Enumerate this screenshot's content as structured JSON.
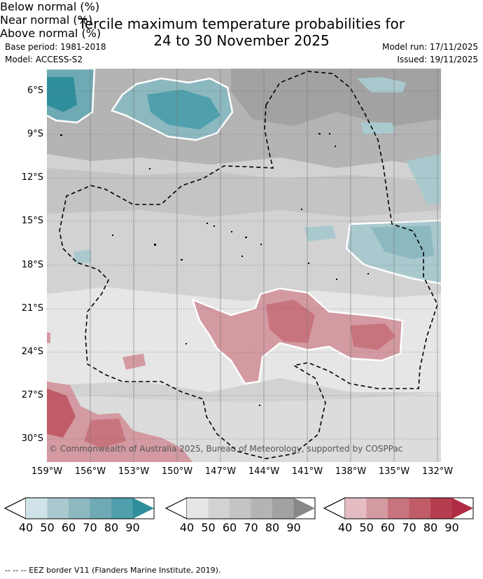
{
  "title_line1": "Tercile maximum temperature probabilities for",
  "title_line2": "24 to 30 November 2025",
  "base_period": "Base period: 1981-2018",
  "model": "Model: ACCESS-S2",
  "model_run": "Model run: 17/11/2025",
  "issued": "Issued: 19/11/2025",
  "copyright": "© Commonwealth of Australia 2025, Bureau of Meteorology, supported by COSPPac",
  "lat_labels": [
    "6°S",
    "9°S",
    "12°S",
    "15°S",
    "18°S",
    "21°S",
    "24°S",
    "27°S",
    "30°S"
  ],
  "lon_labels": [
    "159°W",
    "156°W",
    "153°W",
    "150°W",
    "147°W",
    "144°W",
    "141°W",
    "138°W",
    "135°W",
    "132°W"
  ],
  "legends": [
    {
      "name": "Below normal (%)",
      "ticks": [
        "40",
        "50",
        "60",
        "70",
        "80",
        "90"
      ],
      "colors": [
        "#cfe3e8",
        "#a9c9ce",
        "#8cb8c0",
        "#6eaab4",
        "#4fa0ac",
        "#2f8e9c"
      ]
    },
    {
      "name": "Near normal (%)",
      "ticks": [
        "40",
        "50",
        "60",
        "70",
        "80",
        "90"
      ],
      "colors": [
        "#e6e6e6",
        "#d2d2d2",
        "#c4c4c4",
        "#b4b4b4",
        "#a2a2a2",
        "#888888"
      ]
    },
    {
      "name": "Above normal (%)",
      "ticks": [
        "40",
        "50",
        "60",
        "70",
        "80",
        "90"
      ],
      "colors": [
        "#e4bcc1",
        "#d49aa1",
        "#c8747e",
        "#c05c68",
        "#b63c50",
        "#b02c44"
      ]
    }
  ],
  "footer": "-- -- -- EEZ border V11 (Flanders Marine Institute, 2019)."
}
